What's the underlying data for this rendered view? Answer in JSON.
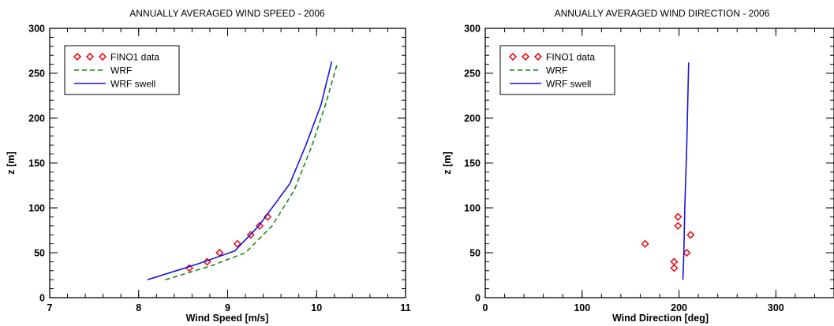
{
  "chart_data": [
    {
      "type": "line",
      "title": "ANNUALLY AVERAGED WIND SPEED - 2006",
      "xlabel": "Wind Speed [m/s]",
      "ylabel": "z [m]",
      "xlim": [
        7,
        11
      ],
      "ylim": [
        0,
        300
      ],
      "xticks": [
        "7",
        "8",
        "9",
        "10",
        "11"
      ],
      "yticks": [
        "0",
        "50",
        "100",
        "150",
        "200",
        "250",
        "300"
      ],
      "x_minor_step": 0.2,
      "y_minor_step": 10,
      "legend_position": "top-left",
      "series": [
        {
          "name": "FINO1 data",
          "style": "diamond-markers",
          "color": "#e8141c",
          "points": [
            [
              8.57,
              33
            ],
            [
              8.77,
              40
            ],
            [
              8.91,
              50
            ],
            [
              9.11,
              60
            ],
            [
              9.26,
              70
            ],
            [
              9.36,
              80
            ],
            [
              9.45,
              90
            ]
          ]
        },
        {
          "name": "WRF",
          "style": "dashed",
          "color": "#168a16",
          "points": [
            [
              8.3,
              20
            ],
            [
              8.8,
              35
            ],
            [
              9.2,
              50
            ],
            [
              9.5,
              80
            ],
            [
              9.75,
              120
            ],
            [
              9.95,
              170
            ],
            [
              10.1,
              215
            ],
            [
              10.23,
              260
            ]
          ]
        },
        {
          "name": "WRF swell",
          "style": "solid",
          "color": "#1515dd",
          "points": [
            [
              8.1,
              20
            ],
            [
              8.65,
              37
            ],
            [
              9.08,
              52
            ],
            [
              9.35,
              80
            ],
            [
              9.7,
              127
            ],
            [
              9.88,
              170
            ],
            [
              10.05,
              215
            ],
            [
              10.17,
              263
            ]
          ]
        }
      ]
    },
    {
      "type": "line",
      "title": "ANNUALLY AVERAGED WIND DIRECTION - 2006",
      "xlabel": "Wind Direction [deg]",
      "ylabel": "z [m]",
      "xlim": [
        0,
        360
      ],
      "ylim": [
        0,
        300
      ],
      "xticks": [
        "0",
        "100",
        "200",
        "300"
      ],
      "yticks": [
        "0",
        "50",
        "100",
        "150",
        "200",
        "250",
        "300"
      ],
      "x_minor_step": 20,
      "y_minor_step": 10,
      "legend_position": "top-left",
      "series": [
        {
          "name": "FINO1 data",
          "style": "diamond-markers",
          "color": "#e8141c",
          "points": [
            [
              195,
              33
            ],
            [
              195,
              40
            ],
            [
              208,
              50
            ],
            [
              165,
              60
            ],
            [
              212,
              70
            ],
            [
              199,
              80
            ],
            [
              199,
              90
            ]
          ]
        },
        {
          "name": "WRF",
          "style": "dashed",
          "color": "#168a16",
          "points": []
        },
        {
          "name": "WRF swell",
          "style": "solid",
          "color": "#1515dd",
          "points": [
            [
              204,
              20
            ],
            [
              205,
              50
            ],
            [
              206,
              100
            ],
            [
              208,
              170
            ],
            [
              210,
              262
            ]
          ]
        }
      ]
    }
  ]
}
